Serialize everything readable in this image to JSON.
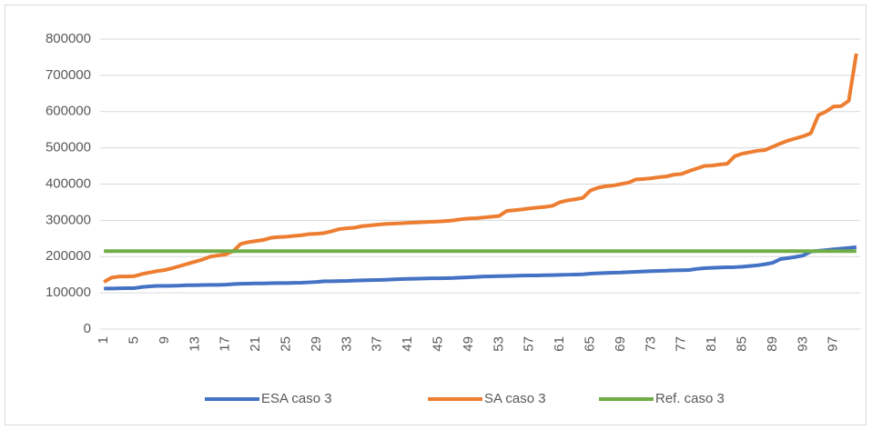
{
  "chart_data": {
    "type": "line",
    "categories": [
      1,
      null,
      null,
      null,
      5,
      null,
      null,
      null,
      9,
      null,
      null,
      null,
      13,
      null,
      null,
      null,
      17,
      null,
      null,
      null,
      21,
      null,
      null,
      null,
      25,
      null,
      null,
      null,
      29,
      null,
      null,
      null,
      33,
      null,
      null,
      null,
      37,
      null,
      null,
      null,
      41,
      null,
      null,
      null,
      45,
      null,
      null,
      null,
      49,
      null,
      null,
      null,
      53,
      null,
      null,
      null,
      57,
      null,
      null,
      null,
      61,
      null,
      null,
      null,
      65,
      null,
      null,
      null,
      69,
      null,
      null,
      null,
      73,
      null,
      null,
      null,
      77,
      null,
      null,
      null,
      81,
      null,
      null,
      null,
      85,
      null,
      null,
      null,
      89,
      null,
      null,
      null,
      93,
      null,
      null,
      null,
      97,
      null,
      null,
      null
    ],
    "series": [
      {
        "name": "ESA caso 3",
        "color": "#4472c4",
        "values": [
          112000,
          112000,
          112500,
          113000,
          113000,
          116000,
          118000,
          119000,
          119000,
          119500,
          120000,
          121000,
          121000,
          121500,
          122000,
          122000,
          122500,
          124000,
          125000,
          125500,
          126000,
          126000,
          126500,
          127000,
          127000,
          127500,
          128000,
          129000,
          130000,
          132000,
          132000,
          132500,
          133000,
          134000,
          134500,
          135000,
          135500,
          136000,
          137000,
          138000,
          138500,
          139000,
          139500,
          140000,
          140000,
          140500,
          141000,
          142000,
          143000,
          144000,
          145000,
          145500,
          146000,
          146500,
          147000,
          147500,
          148000,
          148000,
          148500,
          149000,
          149500,
          150000,
          150500,
          151000,
          153000,
          154000,
          155000,
          155500,
          156000,
          157000,
          158000,
          159000,
          160000,
          160500,
          161000,
          162000,
          162500,
          163000,
          166000,
          168000,
          169000,
          170000,
          170500,
          171000,
          172000,
          174000,
          176000,
          179000,
          183000,
          193000,
          196000,
          199000,
          203000,
          214000,
          216000,
          218000,
          220000,
          222000,
          224000,
          226000
        ]
      },
      {
        "name": "SA caso 3",
        "color": "#ed7d31",
        "values": [
          130000,
          142000,
          145000,
          145000,
          146000,
          152000,
          156000,
          160000,
          163000,
          168000,
          174000,
          180000,
          186000,
          192000,
          200000,
          203000,
          206000,
          215000,
          235000,
          240000,
          243000,
          246000,
          252000,
          254000,
          255000,
          257000,
          259000,
          262000,
          263000,
          265000,
          270000,
          276000,
          278000,
          280000,
          284000,
          286000,
          288000,
          290000,
          291000,
          292000,
          293000,
          294000,
          295000,
          296000,
          297000,
          298000,
          300000,
          303000,
          305000,
          306000,
          308000,
          310000,
          312000,
          326000,
          328000,
          330000,
          333000,
          335000,
          337000,
          340000,
          350000,
          355000,
          358000,
          362000,
          382000,
          390000,
          394000,
          396000,
          400000,
          404000,
          413000,
          414000,
          416000,
          419000,
          421000,
          426000,
          428000,
          436000,
          443000,
          450000,
          451000,
          454000,
          456000,
          477000,
          484000,
          488000,
          492000,
          494000,
          503000,
          512000,
          520000,
          526000,
          532000,
          540000,
          590000,
          600000,
          614000,
          615000,
          630000,
          760000
        ]
      },
      {
        "name": "Ref. caso 3",
        "color": "#70ad47",
        "values": [
          215000,
          215000,
          215000,
          215000,
          215000,
          215000,
          215000,
          215000,
          215000,
          215000,
          215000,
          215000,
          215000,
          215000,
          215000,
          215000,
          215000,
          215000,
          215000,
          215000,
          215000,
          215000,
          215000,
          215000,
          215000,
          215000,
          215000,
          215000,
          215000,
          215000,
          215000,
          215000,
          215000,
          215000,
          215000,
          215000,
          215000,
          215000,
          215000,
          215000,
          215000,
          215000,
          215000,
          215000,
          215000,
          215000,
          215000,
          215000,
          215000,
          215000,
          215000,
          215000,
          215000,
          215000,
          215000,
          215000,
          215000,
          215000,
          215000,
          215000,
          215000,
          215000,
          215000,
          215000,
          215000,
          215000,
          215000,
          215000,
          215000,
          215000,
          215000,
          215000,
          215000,
          215000,
          215000,
          215000,
          215000,
          215000,
          215000,
          215000,
          215000,
          215000,
          215000,
          215000,
          215000,
          215000,
          215000,
          215000,
          215000,
          215000,
          215000,
          215000,
          215000,
          215000,
          215000,
          215000,
          215000,
          215000,
          215000,
          215000
        ]
      }
    ],
    "ylim": [
      0,
      800000
    ],
    "yticks": [
      0,
      100000,
      200000,
      300000,
      400000,
      500000,
      600000,
      700000,
      800000
    ],
    "grid": true,
    "legend": "bottom"
  }
}
